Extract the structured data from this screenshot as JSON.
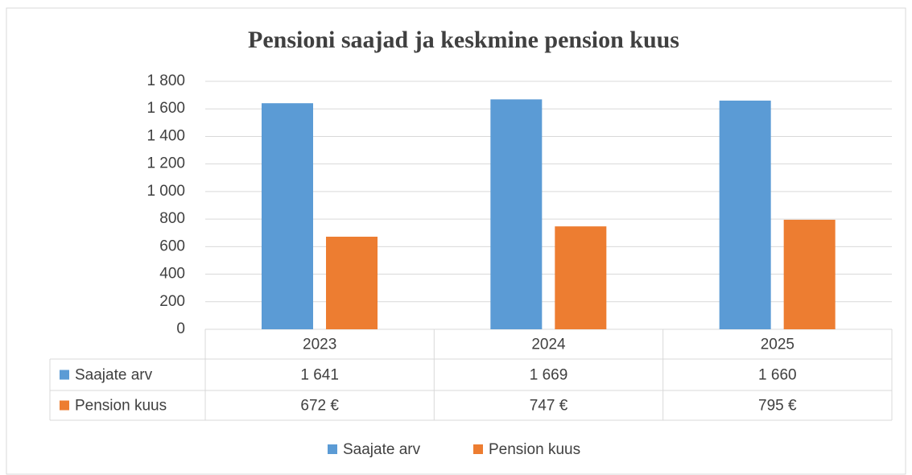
{
  "chart_data": {
    "type": "bar",
    "title": "Pensioni saajad ja keskmine pension kuus",
    "categories": [
      "2023",
      "2024",
      "2025"
    ],
    "series": [
      {
        "name": "Saajate arv",
        "color": "#5b9bd5",
        "values": [
          1641,
          1669,
          1660
        ],
        "value_labels": [
          "1 641",
          "1 669",
          "1 660"
        ]
      },
      {
        "name": "Pension kuus",
        "color": "#ed7d31",
        "values": [
          672,
          747,
          795
        ],
        "value_labels": [
          "672 €",
          "747 €",
          "795 €"
        ]
      }
    ],
    "ylim": [
      0,
      1800
    ],
    "yticks": [
      0,
      200,
      400,
      600,
      {
        "value": 800,
        "label": "800"
      },
      {
        "value": 1000,
        "label": "1 000"
      },
      {
        "value": 1200,
        "label": "1 200"
      },
      {
        "value": 1400,
        "label": "1 400"
      },
      {
        "value": 1600,
        "label": "1 600"
      },
      {
        "value": 1800,
        "label": "1 800"
      }
    ],
    "grid": true,
    "legend": "bottom"
  }
}
